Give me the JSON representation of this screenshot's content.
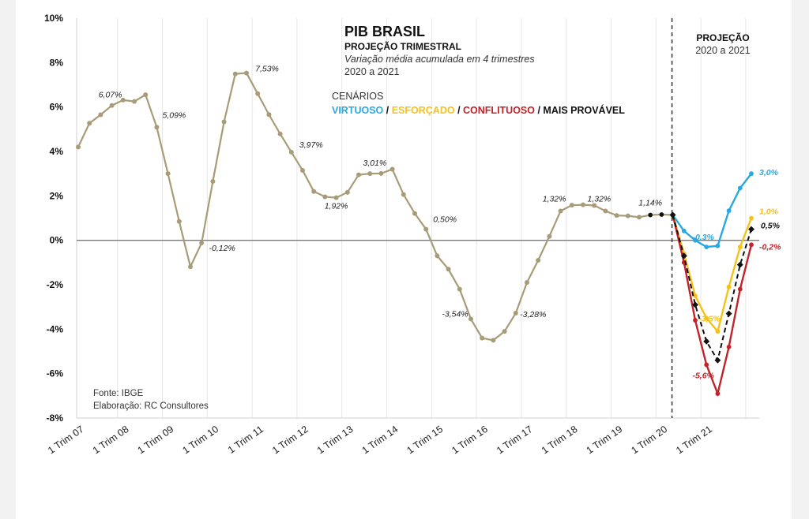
{
  "chart_data": {
    "type": "line",
    "title": "PIB BRASIL",
    "subtitle": "PROJEÇÃO TRIMESTRAL",
    "description": "Variação média acumulada em 4 trimestres",
    "period": "2020 a 2021",
    "projection_label": "PROJEÇÃO",
    "projection_period": "2020 a 2021",
    "scenarios_title": "CENÁRIOS",
    "separator": " / ",
    "source": "Fonte: IBGE",
    "author": "Elaboração: RC Consultores",
    "ylim": [
      -8,
      10
    ],
    "y_ticks": [
      "10%",
      "8%",
      "6%",
      "4%",
      "2%",
      "0%",
      "-2%",
      "-4%",
      "-6%",
      "-8%"
    ],
    "y_tick_values": [
      10,
      8,
      6,
      4,
      2,
      0,
      -2,
      -4,
      -6,
      -8
    ],
    "x_tick_labels": [
      "1 Trim 07",
      "1 Trim 08",
      "1 Trim 09",
      "1 Trim 10",
      "1 Trim 11",
      "1 Trim 12",
      "1 Trim 13",
      "1 Trim 14",
      "1 Trim 15",
      "1 Trim 16",
      "1 Trim 17",
      "1 Trim 18",
      "1 Trim 19",
      "1 Trim 20",
      "1 Trim 21"
    ],
    "projection_start_index": 53,
    "colors": {
      "historical": "#a89c78",
      "virtuoso": "#29a9e1",
      "esforcado": "#f5c21b",
      "conflituoso": "#c0232a",
      "provavel": "#111111"
    },
    "historical": [
      4.2,
      5.27,
      5.65,
      6.07,
      6.31,
      6.25,
      6.55,
      5.09,
      3.0,
      0.85,
      -1.19,
      -0.12,
      2.65,
      5.33,
      7.49,
      7.53,
      6.6,
      5.66,
      4.79,
      3.97,
      3.15,
      2.2,
      1.96,
      1.92,
      2.16,
      2.95,
      3.0,
      3.01,
      3.2,
      2.06,
      1.21,
      0.5,
      -0.7,
      -1.3,
      -2.2,
      -3.54,
      -4.4,
      -4.5,
      -4.1,
      -3.28,
      -1.9,
      -0.9,
      0.18,
      1.32,
      1.58,
      1.6,
      1.57,
      1.32,
      1.12,
      1.1,
      1.04,
      1.14,
      1.16,
      1.14
    ],
    "series": [
      {
        "name": "VIRTUOSO",
        "values": [
          1.14,
          0.42,
          0.0,
          -0.3,
          -0.25,
          1.33,
          2.35,
          3.0
        ]
      },
      {
        "name": "ESFORÇADO",
        "values": [
          1.14,
          -0.6,
          -2.5,
          -3.5,
          -4.1,
          -2.1,
          -0.3,
          1.0
        ]
      },
      {
        "name": "CONFLITUOSO",
        "values": [
          1.14,
          -1.0,
          -3.6,
          -5.6,
          -6.9,
          -4.8,
          -2.2,
          -0.2
        ]
      },
      {
        "name": "MAIS PROVÁVEL",
        "values": [
          1.14,
          -0.7,
          -2.9,
          -4.55,
          -5.4,
          -3.3,
          -1.1,
          0.5
        ]
      }
    ],
    "data_labels": [
      {
        "index": 3,
        "text": "6,07%"
      },
      {
        "index": 7,
        "text": "5,09%"
      },
      {
        "index": 11,
        "text": "-0,12%"
      },
      {
        "index": 15,
        "text": "7,53%"
      },
      {
        "index": 19,
        "text": "3,97%"
      },
      {
        "index": 23,
        "text": "1,92%"
      },
      {
        "index": 27,
        "text": "3,01%"
      },
      {
        "index": 31,
        "text": "0,50%"
      },
      {
        "index": 35,
        "text": "-3,54%"
      },
      {
        "index": 39,
        "text": "-3,28%"
      },
      {
        "index": 43,
        "text": "1,32%"
      },
      {
        "index": 47,
        "text": "1,32%"
      },
      {
        "index": 51,
        "text": "1,14%"
      }
    ],
    "projection_labels": [
      {
        "text": "-0,3%"
      },
      {
        "text": "-3,5%"
      },
      {
        "text": "-5,6%"
      },
      {
        "text": "3,0%"
      },
      {
        "text": "1,0%"
      },
      {
        "text": "0,5%"
      },
      {
        "text": "-0,2%"
      }
    ],
    "grid": "vertical",
    "legend": "top"
  }
}
